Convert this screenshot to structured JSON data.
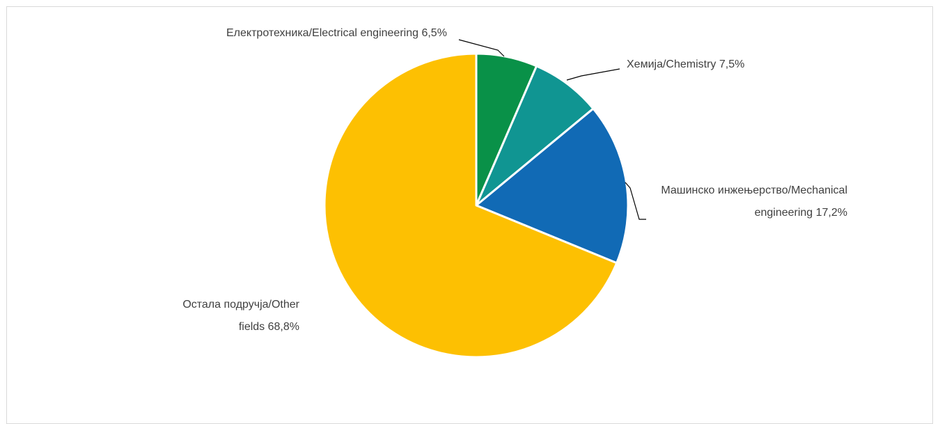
{
  "chart_data": {
    "type": "pie",
    "title": "",
    "slices": [
      {
        "label_lines": [
          "Електротехника/Electrical engineering 6,5%"
        ],
        "value": 6.5,
        "color": "#099148"
      },
      {
        "label_lines": [
          "Хемија/Chemistry 7,5%"
        ],
        "value": 7.5,
        "color": "#109592"
      },
      {
        "label_lines": [
          "Машинско инжењерство/Mechanical",
          "engineering 17,2%"
        ],
        "value": 17.2,
        "color": "#116ab5"
      },
      {
        "label_lines": [
          "Остала подручја/Other",
          "fields  68,8%"
        ],
        "value": 68.8,
        "color": "#fdc002"
      }
    ],
    "start_angle_deg": 0,
    "direction": "clockwise",
    "legend": "none",
    "data_labels": "outside with leader lines"
  }
}
